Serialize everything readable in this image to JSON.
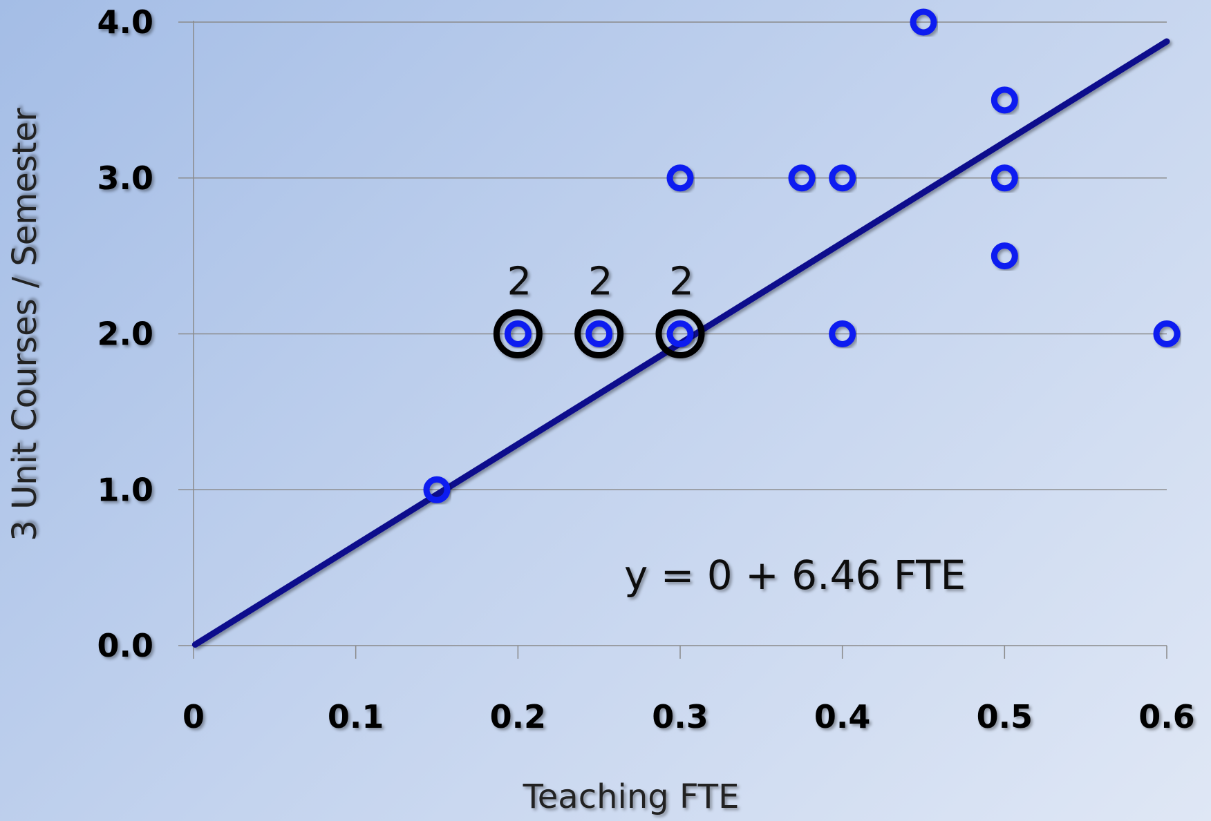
{
  "chart_data": {
    "type": "scatter",
    "title": "",
    "xlabel": "Teaching FTE",
    "ylabel": "3 Unit Courses / Semester",
    "xlim": [
      0,
      0.6
    ],
    "ylim": [
      0,
      4
    ],
    "x_ticks": [
      "0",
      "0.1",
      "0.2",
      "0.3",
      "0.4",
      "0.5",
      "0.6"
    ],
    "y_ticks": [
      "0.0",
      "1.0",
      "2.0",
      "3.0",
      "4.0"
    ],
    "grid": "horizontal",
    "points": [
      {
        "x": 0.15,
        "y": 1.0
      },
      {
        "x": 0.2,
        "y": 2.0
      },
      {
        "x": 0.25,
        "y": 2.0
      },
      {
        "x": 0.3,
        "y": 2.0
      },
      {
        "x": 0.3,
        "y": 3.0
      },
      {
        "x": 0.375,
        "y": 3.0
      },
      {
        "x": 0.4,
        "y": 3.0
      },
      {
        "x": 0.4,
        "y": 2.0
      },
      {
        "x": 0.45,
        "y": 4.0
      },
      {
        "x": 0.5,
        "y": 3.5
      },
      {
        "x": 0.5,
        "y": 3.0
      },
      {
        "x": 0.5,
        "y": 2.5
      },
      {
        "x": 0.6,
        "y": 2.0
      }
    ],
    "duplicate_points": [
      {
        "x": 0.2,
        "y": 2.0,
        "count": "2"
      },
      {
        "x": 0.25,
        "y": 2.0,
        "count": "2"
      },
      {
        "x": 0.3,
        "y": 2.0,
        "count": "2"
      }
    ],
    "trendline": {
      "intercept": 0,
      "slope": 6.46,
      "x_range": [
        0,
        0.6
      ]
    },
    "annotation": "y = 0 + 6.46 FTE",
    "colors": {
      "points": "#0a1af0",
      "trendline": "#0a0a8c",
      "duplicate_ring": "#000000",
      "grid": "#8a8a8a"
    }
  }
}
